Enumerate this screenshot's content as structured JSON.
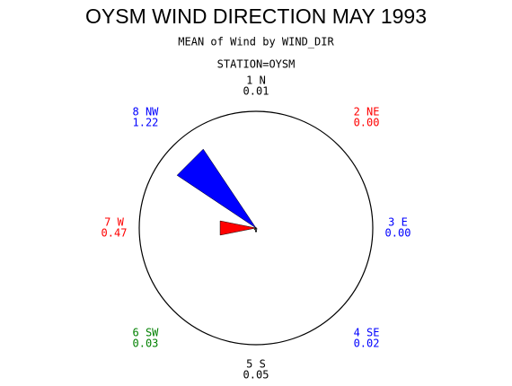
{
  "chart_data": {
    "type": "rose",
    "title": "OYSM WIND DIRECTION MAY 1993",
    "subtitle": "MEAN of Wind by WIND_DIR",
    "group_label": "STATION=OYSM",
    "categories": [
      "1 N",
      "2 NE",
      "3 E",
      "4 SE",
      "5 S",
      "6 SW",
      "7 W",
      "8 NW"
    ],
    "values": [
      0.01,
      0,
      0,
      0.02,
      0.05,
      0.03,
      0.47,
      1.22
    ],
    "value_labels": [
      "0.01",
      "0.00",
      "0.00",
      "0.02",
      "0.05",
      "0.03",
      "0.47",
      "1.22"
    ],
    "colors": [
      "#000000",
      "#ff0000",
      "#0000ff",
      "#0000ff",
      "#000000",
      "#008000",
      "#ff0000",
      "#0000ff"
    ],
    "rlim": [
      0,
      1.5
    ]
  }
}
